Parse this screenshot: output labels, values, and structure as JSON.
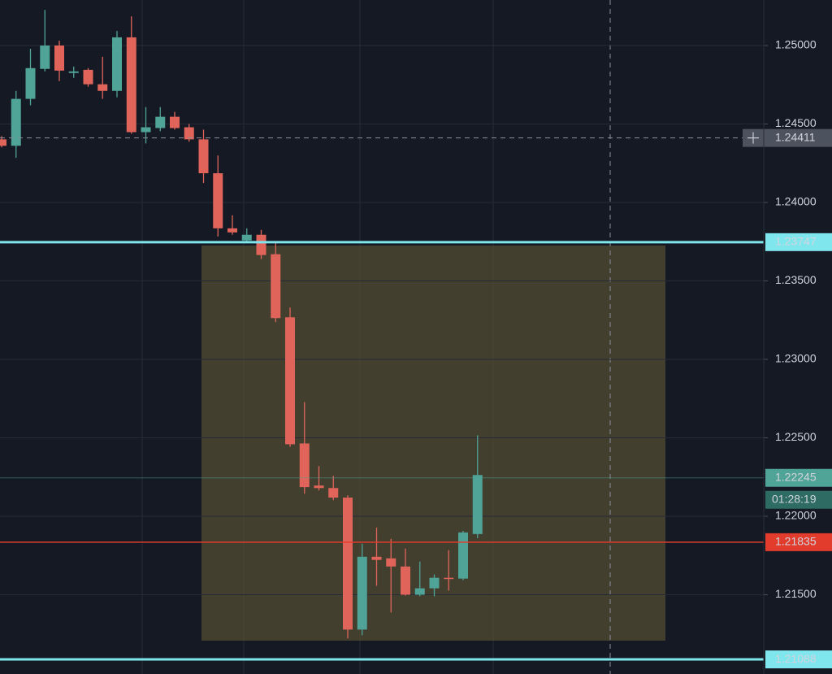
{
  "chart_data": {
    "type": "candlestick",
    "categories": [
      null,
      null,
      null,
      null,
      null,
      null,
      null,
      null,
      null,
      null,
      null,
      null,
      null,
      null,
      null,
      null,
      null,
      null,
      null,
      null,
      null,
      null,
      null,
      null,
      null,
      null,
      null,
      null,
      null,
      null,
      null,
      null,
      null,
      null
    ],
    "open": [
      1.24402,
      1.24361,
      1.2466,
      1.24851,
      1.25,
      1.24825,
      1.24845,
      1.24753,
      1.24711,
      1.25052,
      1.24448,
      1.24474,
      1.24546,
      1.24479,
      1.24402,
      1.24186,
      1.23835,
      1.23758,
      1.23794,
      1.2367,
      1.23268,
      1.22464,
      1.22196,
      1.2218,
      1.22119,
      1.21278,
      1.21742,
      1.21732,
      1.2168,
      1.215,
      1.21541,
      1.21608,
      1.21603,
      1.21887
    ],
    "high": [
      1.24423,
      1.24711,
      1.24979,
      1.25227,
      1.25031,
      1.24866,
      1.24856,
      1.24928,
      1.25093,
      1.25186,
      1.24608,
      1.24608,
      1.24577,
      1.245,
      1.24464,
      1.24299,
      1.23918,
      1.23835,
      1.23825,
      1.23742,
      1.2333,
      1.22727,
      1.2232,
      1.22258,
      1.22134,
      1.21825,
      1.21928,
      1.21856,
      1.21794,
      1.21711,
      1.21629,
      1.21784,
      1.21907,
      1.22516
    ],
    "low": [
      1.24351,
      1.24284,
      1.24619,
      1.24835,
      1.24773,
      1.24794,
      1.24737,
      1.2466,
      1.2467,
      1.24438,
      1.24376,
      1.24454,
      1.24464,
      1.24387,
      1.24124,
      1.23783,
      1.23794,
      1.23753,
      1.23639,
      1.23237,
      1.22443,
      1.22144,
      1.22165,
      1.22103,
      1.21222,
      1.21242,
      1.21557,
      1.21387,
      1.21495,
      1.2149,
      1.2149,
      1.21526,
      1.21593,
      1.21861
    ],
    "close": [
      1.24361,
      1.2466,
      1.24856,
      1.25,
      1.2484,
      1.24835,
      1.24753,
      1.24711,
      1.25052,
      1.24448,
      1.24479,
      1.24546,
      1.24474,
      1.24402,
      1.24186,
      1.23835,
      1.23809,
      1.23794,
      1.23665,
      1.23263,
      1.22459,
      1.22186,
      1.2218,
      1.22119,
      1.21278,
      1.21742,
      1.21722,
      1.2168,
      1.215,
      1.21541,
      1.21608,
      1.21603,
      1.21897,
      1.22263
    ],
    "up_color": "#4fa397",
    "down_color": "#e0645a",
    "ylim": [
      1.20995,
      1.2529
    ],
    "yticks": [
      {
        "value": 1.215,
        "label": "1.21500"
      },
      {
        "value": 1.22,
        "label": "1.22000"
      },
      {
        "value": 1.225,
        "label": "1.22500"
      },
      {
        "value": 1.23,
        "label": "1.23000"
      },
      {
        "value": 1.235,
        "label": "1.23500"
      },
      {
        "value": 1.24,
        "label": "1.24000"
      },
      {
        "value": 1.245,
        "label": "1.24500"
      },
      {
        "value": 1.25,
        "label": "1.25000"
      }
    ],
    "grid": true,
    "price_lines": [
      {
        "value": 1.23747,
        "color": "#80e6ee"
      },
      {
        "value": 1.22245,
        "color": "#4fa397",
        "countdown": "01:28:19"
      },
      {
        "value": 1.21835,
        "color": "#e23c2c"
      },
      {
        "value": 1.21088,
        "color": "#80e6ee"
      }
    ],
    "crosshair": {
      "value": 1.24411
    }
  }
}
